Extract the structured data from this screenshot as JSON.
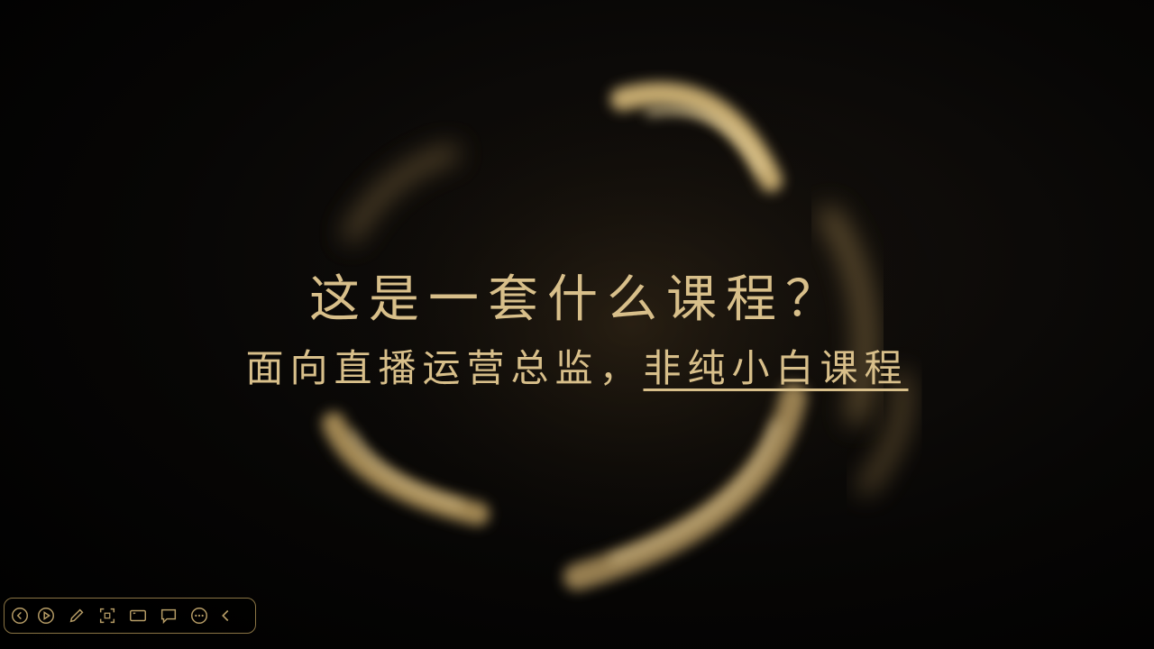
{
  "slide": {
    "title": "这是一套什么课程？",
    "subtitle_prefix": "面向直播运营总监，",
    "subtitle_highlight": "非纯小白课程"
  },
  "colors": {
    "text": "#d8bf8a",
    "swirl": "#c9a868",
    "toolbar_border": "#8a7444",
    "icon": "#b79d66"
  },
  "toolbar": {
    "icons": [
      "prev-icon",
      "play-icon",
      "pen-icon",
      "select-icon",
      "screen-icon",
      "comment-icon",
      "more-icon",
      "collapse-icon"
    ]
  }
}
